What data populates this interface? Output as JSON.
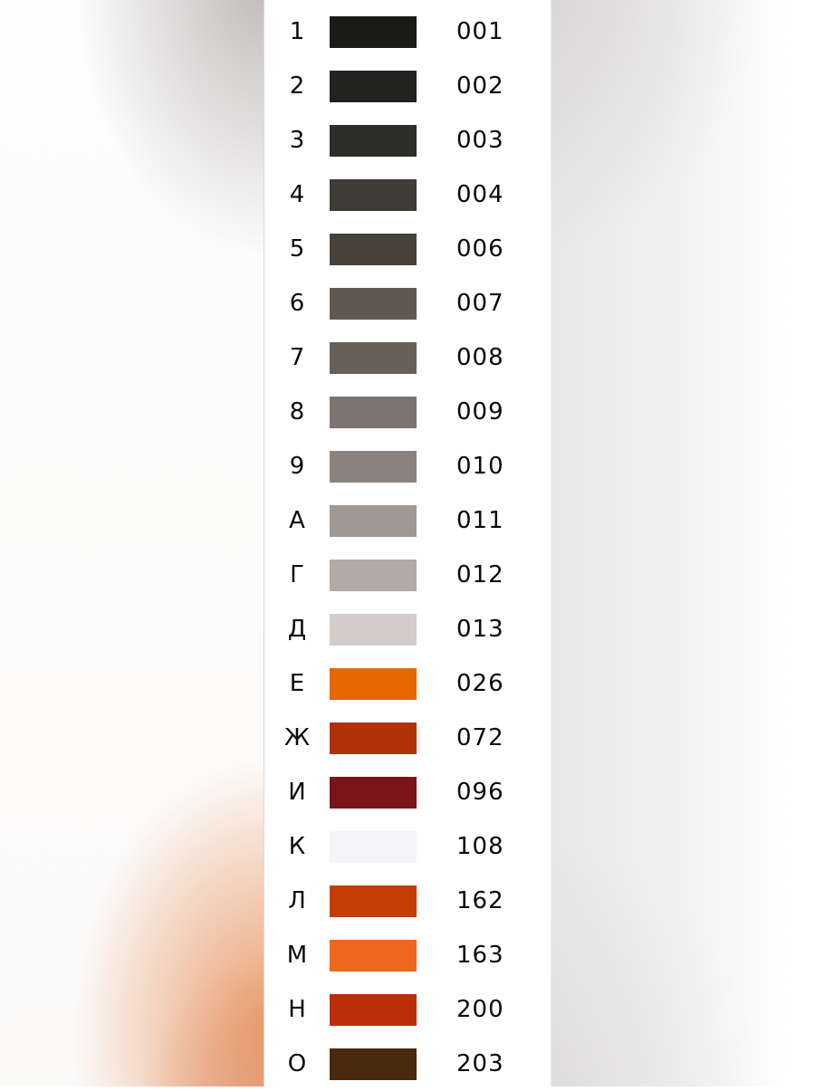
{
  "palette": {
    "rows": [
      {
        "label": "1",
        "code": "001",
        "color": "#1a1a17"
      },
      {
        "label": "2",
        "code": "002",
        "color": "#22221e"
      },
      {
        "label": "3",
        "code": "003",
        "color": "#2d2d29"
      },
      {
        "label": "4",
        "code": "004",
        "color": "#3f3b36"
      },
      {
        "label": "5",
        "code": "006",
        "color": "#474239"
      },
      {
        "label": "6",
        "code": "007",
        "color": "#60584f"
      },
      {
        "label": "7",
        "code": "008",
        "color": "#675f58"
      },
      {
        "label": "8",
        "code": "009",
        "color": "#7d7470"
      },
      {
        "label": "9",
        "code": "010",
        "color": "#8b827e"
      },
      {
        "label": "А",
        "code": "011",
        "color": "#a09894"
      },
      {
        "label": "Г",
        "code": "012",
        "color": "#b2aaa7"
      },
      {
        "label": "Д",
        "code": "013",
        "color": "#d2cdca"
      },
      {
        "label": "Е",
        "code": "026",
        "color": "#e66604"
      },
      {
        "label": "Ж",
        "code": "072",
        "color": "#b23109"
      },
      {
        "label": "И",
        "code": "096",
        "color": "#79151a"
      },
      {
        "label": "К",
        "code": "108",
        "color": "#f5f5f7"
      },
      {
        "label": "Л",
        "code": "162",
        "color": "#c33e07"
      },
      {
        "label": "М",
        "code": "163",
        "color": "#ed671c"
      },
      {
        "label": "Н",
        "code": "200",
        "color": "#bd2d09"
      },
      {
        "label": "О",
        "code": "203",
        "color": "#4a2a0f"
      }
    ]
  }
}
